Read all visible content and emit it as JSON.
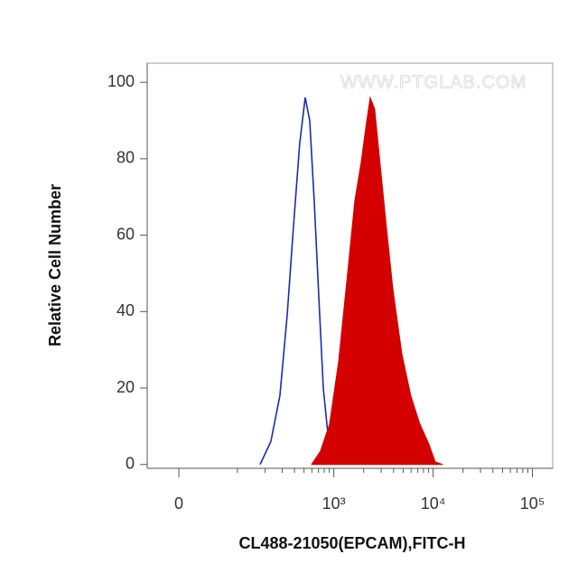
{
  "chart_data": {
    "type": "histogram-overlay",
    "xlabel": "CL488-21050(EPCAM),FITC-H",
    "ylabel": "Relative Cell Number",
    "watermark": "WWW.PTGLAB.COM",
    "xscale": "biexponential",
    "xlim": [
      -44,
      160000
    ],
    "ylim": [
      -1,
      105
    ],
    "xticks": [
      {
        "value": 0,
        "label": "0"
      },
      {
        "value": 1000,
        "label": "10³"
      },
      {
        "value": 10000,
        "label": "10⁴"
      },
      {
        "value": 100000,
        "label": "10⁵"
      }
    ],
    "xminorticks": [
      100,
      200,
      300,
      400,
      500,
      600,
      700,
      800,
      900,
      2000,
      3000,
      4000,
      5000,
      6000,
      7000,
      8000,
      9000,
      20000,
      30000,
      40000,
      50000,
      60000,
      70000,
      80000,
      90000
    ],
    "yticks": [
      0,
      20,
      40,
      60,
      80,
      100
    ],
    "series": [
      {
        "color": "#1c2bb0",
        "fill": false,
        "x": [
          177,
          229,
          284,
          337,
          390,
          452,
          514,
          571,
          634,
          705,
          783,
          887,
          1050,
          1241
        ],
        "values": [
          0,
          6,
          18,
          39,
          62,
          84,
          96,
          90,
          69,
          44,
          20,
          6,
          1,
          0
        ]
      },
      {
        "color": "#d40000",
        "fill": true,
        "x": [
          596,
          734,
          906,
          1118,
          1377,
          1628,
          1885,
          2095,
          2325,
          2580,
          2865,
          3390,
          3930,
          4840,
          5960,
          7350,
          9060,
          10490,
          12410
        ],
        "values": [
          0,
          3.5,
          10.6,
          27,
          50,
          69,
          79,
          88,
          96,
          93,
          81,
          62,
          46,
          29,
          18,
          10.6,
          5.4,
          0.7,
          0
        ]
      }
    ]
  }
}
